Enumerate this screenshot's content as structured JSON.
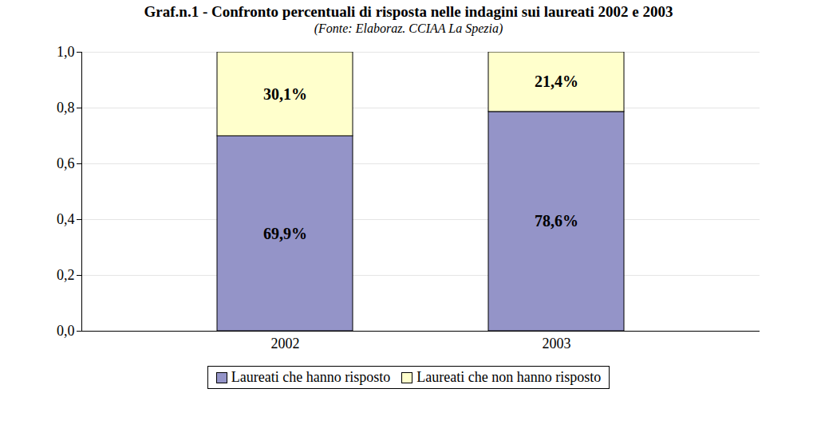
{
  "chart_data": {
    "type": "bar",
    "title": "Graf.n.1 - Confronto percentuali di risposta nelle indagini sui laureati 2002 e 2003",
    "subtitle": "(Fonte: Elaboraz. CCIAA La Spezia)",
    "categories": [
      "2002",
      "2003"
    ],
    "series": [
      {
        "name": "Laureati che hanno risposto",
        "color": "#9494c8",
        "values": [
          0.699,
          0.786
        ],
        "value_labels": [
          "69,9%",
          "78,6%"
        ]
      },
      {
        "name": "Laureati che non hanno risposto",
        "color": "#ffffcc",
        "values": [
          0.301,
          0.214
        ],
        "value_labels": [
          "30,1%",
          "21,4%"
        ]
      }
    ],
    "stacked": true,
    "data_labels": true,
    "grid": true,
    "legend": "bottom",
    "ylim": [
      0,
      1.0
    ],
    "yticks": [
      {
        "value": 0,
        "label": "0,0"
      },
      {
        "value": 0.2,
        "label": "0,2"
      },
      {
        "value": 0.4,
        "label": "0,4"
      },
      {
        "value": 0.6,
        "label": "0,6"
      },
      {
        "value": 0.8,
        "label": "0,8"
      },
      {
        "value": 1.0,
        "label": "1,0"
      }
    ]
  }
}
